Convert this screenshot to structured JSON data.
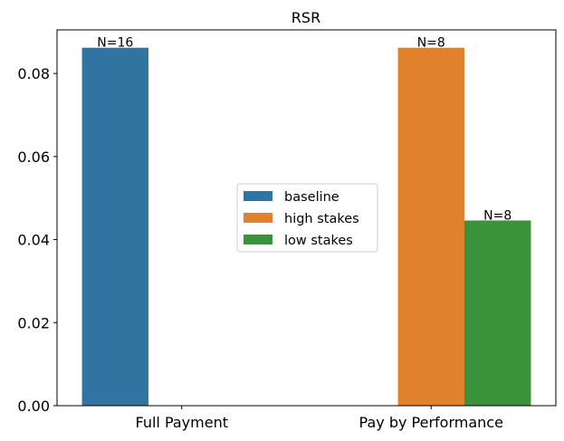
{
  "chart_data": {
    "type": "bar",
    "title": "RSR",
    "xlabel": "",
    "ylabel": "",
    "categories": [
      "Full Payment",
      "Pay by Performance"
    ],
    "series": [
      {
        "name": "baseline",
        "color": "#3274a1",
        "values": [
          0.0862,
          null
        ]
      },
      {
        "name": "high stakes",
        "color": "#e1812c",
        "values": [
          null,
          0.0862
        ]
      },
      {
        "name": "low stakes",
        "color": "#3a923a",
        "values": [
          null,
          0.0446
        ]
      }
    ],
    "data_labels": [
      {
        "category": "Full Payment",
        "series": "baseline",
        "text": "N=16"
      },
      {
        "category": "Pay by Performance",
        "series": "high stakes",
        "text": "N=8"
      },
      {
        "category": "Pay by Performance",
        "series": "low stakes",
        "text": "N=8"
      }
    ],
    "ylim": [
      0,
      0.0905
    ],
    "yticks": [
      "0.00",
      "0.02",
      "0.04",
      "0.06",
      "0.08"
    ],
    "ytick_values": [
      0,
      0.02,
      0.04,
      0.06,
      0.08
    ],
    "grid": false,
    "legend_position": "center"
  }
}
